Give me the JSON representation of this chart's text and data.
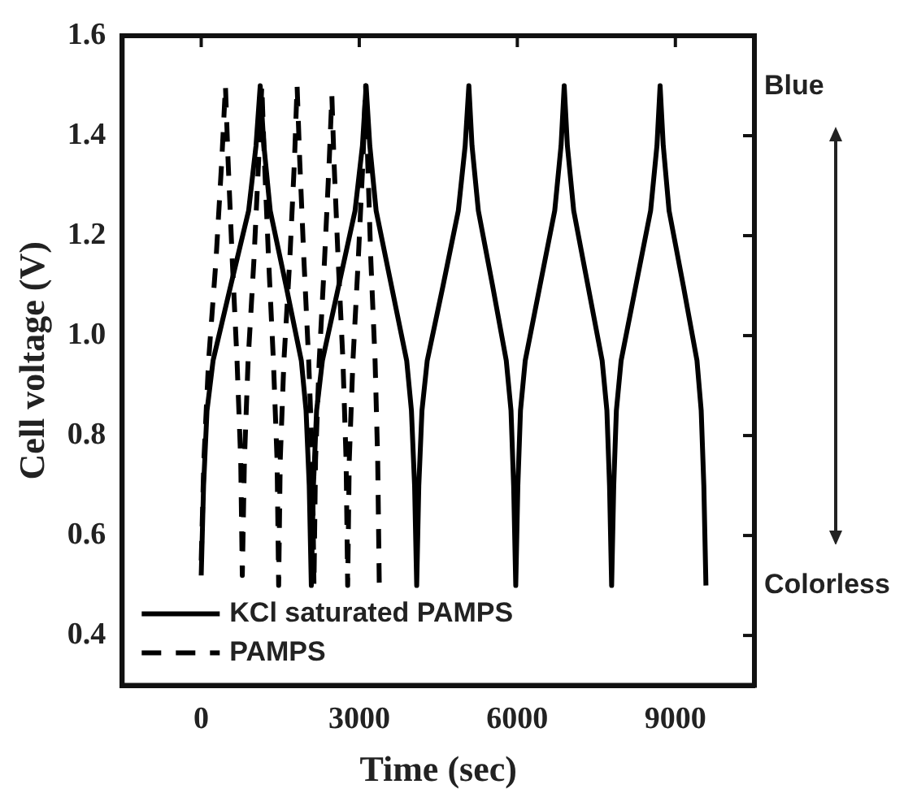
{
  "chart_data": {
    "type": "line",
    "xlabel": "Time (sec)",
    "ylabel": "Cell voltage (V)",
    "xlim": [
      -1500,
      10500
    ],
    "xticks": [
      0,
      3000,
      6000,
      9000
    ],
    "ylim": [
      0.3,
      1.6
    ],
    "yticks": [
      0.4,
      0.6,
      0.8,
      {
        "value": 1,
        "label": "1.0"
      },
      1.2,
      1.4,
      1.6
    ],
    "legend": "bottom left",
    "grid": false,
    "marker": "none",
    "annotations": [
      "Blue",
      "Colorless"
    ],
    "series": [
      {
        "name": "KCl saturated PAMPS",
        "color": "#000000",
        "line_style": "solid",
        "x": [
          0,
          45,
          110,
          225,
          560,
          900,
          1040,
          1120,
          1190,
          1310,
          1610,
          1900,
          1990,
          2050,
          2090,
          2130,
          2190,
          2300,
          2610,
          2920,
          3060,
          3130,
          3200,
          3320,
          3610,
          3900,
          3990,
          4050,
          4090,
          4130,
          4190,
          4290,
          4590,
          4880,
          5010,
          5080,
          5140,
          5260,
          5530,
          5790,
          5880,
          5930,
          5970,
          6010,
          6060,
          6150,
          6430,
          6710,
          6830,
          6890,
          6950,
          7070,
          7340,
          7610,
          7700,
          7750,
          7790,
          7830,
          7880,
          7970,
          8250,
          8530,
          8650,
          8710,
          8770,
          8880,
          9150,
          9410,
          9490,
          9540,
          9580
        ],
        "values": [
          0.52,
          0.7,
          0.85,
          0.95,
          1.1,
          1.25,
          1.38,
          1.5,
          1.38,
          1.25,
          1.1,
          0.95,
          0.85,
          0.7,
          0.5,
          0.7,
          0.85,
          0.95,
          1.1,
          1.25,
          1.38,
          1.5,
          1.38,
          1.25,
          1.1,
          0.95,
          0.85,
          0.7,
          0.5,
          0.7,
          0.85,
          0.95,
          1.1,
          1.25,
          1.38,
          1.5,
          1.38,
          1.25,
          1.1,
          0.95,
          0.85,
          0.7,
          0.5,
          0.7,
          0.85,
          0.95,
          1.1,
          1.25,
          1.38,
          1.5,
          1.38,
          1.25,
          1.1,
          0.95,
          0.85,
          0.7,
          0.5,
          0.7,
          0.85,
          0.95,
          1.1,
          1.25,
          1.38,
          1.5,
          1.38,
          1.25,
          1.1,
          0.95,
          0.85,
          0.7,
          0.5
        ]
      },
      {
        "name": "PAMPS",
        "color": "#000000",
        "line_style": "dashed",
        "x": [
          0,
          50,
          140,
          280,
          390,
          460,
          510,
          590,
          680,
          750,
          780,
          820,
          890,
          1000,
          1090,
          1150,
          1200,
          1280,
          1370,
          1440,
          1470,
          1500,
          1570,
          1680,
          1770,
          1820,
          1870,
          1950,
          2040,
          2110,
          2140,
          2170,
          2240,
          2340,
          2430,
          2480,
          2520,
          2600,
          2690,
          2750,
          2780,
          2810,
          2880,
          2980,
          3070,
          3120,
          3160,
          3220,
          3300,
          3350,
          3380
        ],
        "values": [
          0.55,
          0.75,
          0.95,
          1.15,
          1.35,
          1.5,
          1.35,
          1.15,
          0.95,
          0.75,
          0.52,
          0.75,
          0.95,
          1.15,
          1.35,
          1.5,
          1.35,
          1.15,
          0.95,
          0.75,
          0.5,
          0.75,
          0.95,
          1.15,
          1.35,
          1.5,
          1.35,
          1.15,
          0.95,
          0.75,
          0.5,
          0.75,
          0.95,
          1.15,
          1.35,
          1.48,
          1.35,
          1.15,
          0.95,
          0.75,
          0.5,
          0.75,
          0.95,
          1.15,
          1.35,
          1.5,
          1.35,
          1.15,
          0.95,
          0.75,
          0.5
        ]
      }
    ]
  }
}
